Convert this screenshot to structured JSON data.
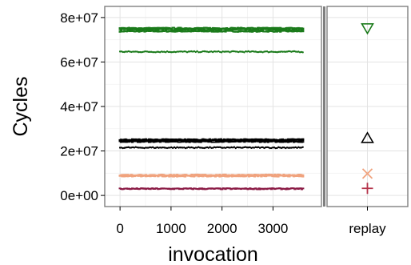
{
  "chart_data": [
    {
      "type": "scatter",
      "panel": "main",
      "xlabel": "invocation",
      "ylabel": "Cycles",
      "xlim": [
        -300,
        3950
      ],
      "ylim": [
        -5000000,
        85000000
      ],
      "x_ticks": [
        0,
        1000,
        2000,
        3000
      ],
      "x_tick_labels": [
        "0",
        "1000",
        "2000",
        "3000"
      ],
      "y_ticks": [
        0,
        20000000,
        40000000,
        60000000,
        80000000
      ],
      "y_tick_labels": [
        "0e+00",
        "2e+07",
        "4e+07",
        "6e+07",
        "8e+07"
      ],
      "grid": true,
      "legend": "none",
      "series": [
        {
          "color": "#1a7a1a",
          "marker": "dash",
          "x_range": [
            0,
            3600
          ],
          "y_values": [
            73800000,
            74600000,
            75200000
          ]
        },
        {
          "color": "#1a7a1a",
          "marker": "dot",
          "x_range": [
            0,
            3600
          ],
          "y_values": [
            64600000
          ]
        },
        {
          "color": "#000000",
          "marker": "dash",
          "x_range": [
            0,
            3600
          ],
          "y_values": [
            24200000,
            24800000,
            25100000
          ]
        },
        {
          "color": "#000000",
          "marker": "dot",
          "x_range": [
            0,
            3600
          ],
          "y_values": [
            21500000
          ]
        },
        {
          "color": "#f0a37e",
          "marker": "dash",
          "x_range": [
            0,
            3600
          ],
          "y_values": [
            8700000,
            9200000
          ]
        },
        {
          "color": "#8b1a45",
          "marker": "dash",
          "x_range": [
            0,
            3600
          ],
          "y_values": [
            3000000
          ]
        }
      ]
    },
    {
      "type": "scatter",
      "panel": "replay",
      "categories": [
        "replay"
      ],
      "ylim": [
        -5000000,
        85000000
      ],
      "grid": true,
      "points": [
        {
          "y": 75000000,
          "marker": "triangle-down",
          "color": "#1a7a1a"
        },
        {
          "y": 26000000,
          "marker": "triangle-up",
          "color": "#000000"
        },
        {
          "y": 9800000,
          "marker": "x",
          "color": "#f0a37e"
        },
        {
          "y": 3200000,
          "marker": "plus",
          "color": "#b5334a"
        }
      ]
    }
  ]
}
